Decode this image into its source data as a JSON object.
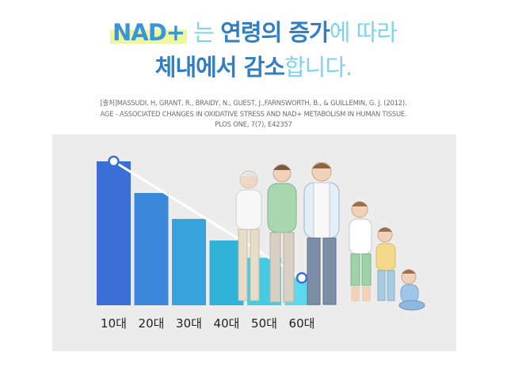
{
  "headline": {
    "line1": [
      {
        "text": "NAD+",
        "style": "hl-nad"
      },
      {
        "text": " 는 ",
        "style": "light"
      },
      {
        "text": "연령의 증가",
        "style": "dark"
      },
      {
        "text": "에 따라",
        "style": "light"
      }
    ],
    "line2": [
      {
        "text": "체내에서 감소",
        "style": "dark"
      },
      {
        "text": "합니다.",
        "style": "light"
      }
    ]
  },
  "source": {
    "line1": "[출처]MASSUDI, H, GRANT, R., BRAIDY, N., GUEST, J.,FARNSWORTH, B., & GUILLEMIN, G. J. (2012).",
    "line2": "AGE - ASSOCIATED CHANGES IN OXIDATIVE STRESS AND NAD+ METABOLISM IN HUMAN TISSUE.",
    "line3": "PLOS ONE, 7(7), E42357"
  },
  "colors": {
    "bars": [
      "#3b6fd6",
      "#3b87db",
      "#38a2dc",
      "#2fb3d8",
      "#46cbe5",
      "#5bdaef"
    ],
    "trend_line": "#ffffff",
    "panel": "#ececec"
  },
  "chart_data": {
    "type": "bar",
    "categories": [
      "10대",
      "20대",
      "30대",
      "40대",
      "50대",
      "60대"
    ],
    "values": [
      100,
      78,
      60,
      45,
      33,
      19
    ],
    "ylim": [
      0,
      100
    ],
    "grid": false,
    "trend_line": {
      "from": "10대",
      "to": "60대"
    }
  },
  "illustration": {
    "description_icon": "family-generations-icon"
  }
}
